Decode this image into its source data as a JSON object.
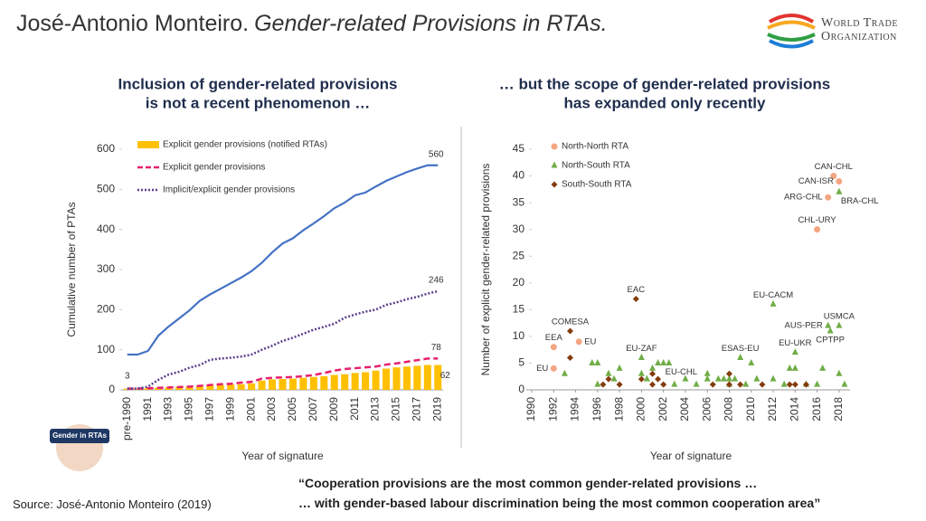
{
  "header": {
    "author": "José-Antonio Monteiro.",
    "title": "Gender-related Provisions in RTAs."
  },
  "logo": [
    "World Trade",
    "Organization"
  ],
  "badge": "Gender in RTAs",
  "chart_data": [
    {
      "type": "line",
      "title": [
        "Inclusion of gender-related provisions",
        "is not a recent phenomenon …"
      ],
      "y_label": "Cumulative number of PTAs",
      "x_label": "Year of signature",
      "categories": [
        "pre-1990",
        null,
        "1991",
        null,
        "1993",
        null,
        "1995",
        null,
        "1997",
        null,
        "1999",
        null,
        "2001",
        null,
        "2003",
        null,
        "2005",
        null,
        "2007",
        null,
        "2009",
        null,
        "2011",
        null,
        "2013",
        null,
        "2015",
        null,
        "2017",
        null,
        "2019"
      ],
      "ylim": [
        0,
        600
      ],
      "yticks": [
        0,
        100,
        200,
        300,
        400,
        500,
        600
      ],
      "series": [
        {
          "color": "#4472c4",
          "style": "solid",
          "values": [
            88,
            88,
            97,
            135,
            158,
            178,
            198,
            222,
            238,
            252,
            266,
            280,
            296,
            317,
            343,
            365,
            378,
            398,
            415,
            433,
            453,
            467,
            485,
            492,
            507,
            521,
            532,
            543,
            552,
            560,
            560
          ]
        },
        {
          "name": "Explicit gender provisions (notified RTAs)",
          "type": "bar",
          "color": "#ffc000",
          "values": [
            3,
            3,
            4,
            5,
            6,
            7,
            8,
            10,
            12,
            12,
            13,
            14,
            16,
            23,
            26,
            27,
            28,
            30,
            32,
            34,
            37,
            39,
            42,
            44,
            48,
            53,
            56,
            58,
            60,
            62,
            62
          ]
        },
        {
          "name": "Explicit gender provisions",
          "color": "#e6206e",
          "style": "dashed",
          "values": [
            3,
            3,
            4,
            5,
            6,
            7,
            8,
            10,
            12,
            14,
            15,
            18,
            20,
            28,
            30,
            31,
            32,
            34,
            37,
            42,
            48,
            52,
            54,
            56,
            58,
            63,
            66,
            70,
            74,
            78,
            78
          ]
        },
        {
          "name": "Implicit/explicit gender provisions",
          "color": "#5b3f8c",
          "style": "dotted",
          "values": [
            3,
            3,
            8,
            25,
            38,
            45,
            55,
            62,
            75,
            78,
            80,
            83,
            88,
            100,
            110,
            122,
            130,
            140,
            150,
            157,
            165,
            180,
            188,
            195,
            200,
            212,
            218,
            226,
            232,
            240,
            246
          ]
        }
      ]
    },
    {
      "type": "scatter",
      "title": [
        "… but the scope of gender-related provisions",
        "has expanded only recently"
      ],
      "y_label": "Number of explicit gender-related provisions",
      "x_label": "Year of signature",
      "xlim": [
        1990,
        2019
      ],
      "xticks": [
        1990,
        1992,
        1994,
        1996,
        1998,
        2000,
        2002,
        2004,
        2006,
        2008,
        2010,
        2012,
        2014,
        2016,
        2018
      ],
      "ylim": [
        0,
        45
      ],
      "yticks": [
        0,
        5,
        10,
        15,
        20,
        25,
        30,
        35,
        40,
        45
      ],
      "series": [
        {
          "name": "North-North RTA",
          "marker": "circle",
          "color": "#f4a582",
          "x": [
            1992,
            1992,
            1994.3,
            2017.5,
            2018,
            2017,
            2016
          ],
          "values": [
            4,
            8,
            9,
            40,
            39,
            36,
            30
          ],
          "labels": [
            "EU",
            "EEA",
            "EU",
            "CAN-CHL",
            "CAN-ISR",
            "ARG-CHL",
            "CHL-URY"
          ]
        },
        {
          "name": "North-South RTA",
          "marker": "triangle",
          "color": "#70ad47",
          "x": [
            1993,
            1995.5,
            1996,
            1996,
            1997,
            1997.5,
            1998,
            2000,
            2000,
            2000.5,
            2001,
            2001.5,
            2002,
            2002.5,
            2003,
            2004,
            2005,
            2006,
            2006,
            2007,
            2007.5,
            2008,
            2008,
            2008.5,
            2009,
            2009.5,
            2010,
            2010.5,
            2012,
            2012,
            2013,
            2013.5,
            2014,
            2014,
            2015,
            2016,
            2016.5,
            2017,
            2017.2,
            2018,
            2018,
            2018,
            2018.5
          ],
          "values": [
            3,
            5,
            5,
            1,
            3,
            2,
            4,
            6,
            3,
            2,
            4,
            5,
            5,
            5,
            1,
            2,
            1,
            3,
            2,
            2,
            2,
            1,
            2,
            2,
            6,
            1,
            5,
            2,
            16,
            2,
            1,
            4,
            4,
            7,
            1,
            1,
            4,
            12,
            11,
            12,
            37,
            3,
            1
          ],
          "labels": [
            null,
            null,
            null,
            null,
            null,
            null,
            null,
            "EU-ZAF",
            null,
            null,
            null,
            null,
            "EU-CHL",
            null,
            null,
            null,
            null,
            null,
            null,
            null,
            null,
            null,
            null,
            null,
            "ESAS-EU",
            null,
            null,
            null,
            "EU-CACM",
            null,
            null,
            null,
            null,
            "EU-UKR",
            null,
            null,
            null,
            "AUS-PER",
            "CPTPP",
            "USMCA",
            "BRA-CHL",
            null,
            null
          ]
        },
        {
          "name": "South-South RTA",
          "marker": "diamond",
          "color": "#843c0c",
          "x": [
            1993.5,
            1993.5,
            1996.5,
            1997,
            1998,
            1999.5,
            2000,
            2001,
            2001,
            2001.5,
            2002,
            2006.5,
            2008,
            2008,
            2009,
            2011,
            2013.5,
            2014,
            2015
          ],
          "values": [
            11,
            6,
            1,
            2,
            1,
            17,
            2,
            3,
            1,
            2,
            1,
            1,
            3,
            1,
            1,
            1,
            1,
            1,
            1
          ],
          "labels": [
            "COMESA",
            null,
            null,
            null,
            null,
            "EAC",
            null,
            null,
            null,
            null,
            null,
            null,
            null,
            null,
            null,
            null,
            null,
            null,
            null
          ]
        }
      ]
    }
  ],
  "quote": [
    "“Cooperation provisions are the most common gender-related provisions …",
    "… with gender-based labour discrimination being the most common cooperation area”"
  ],
  "source": "Source: José-Antonio Monteiro (2019)"
}
